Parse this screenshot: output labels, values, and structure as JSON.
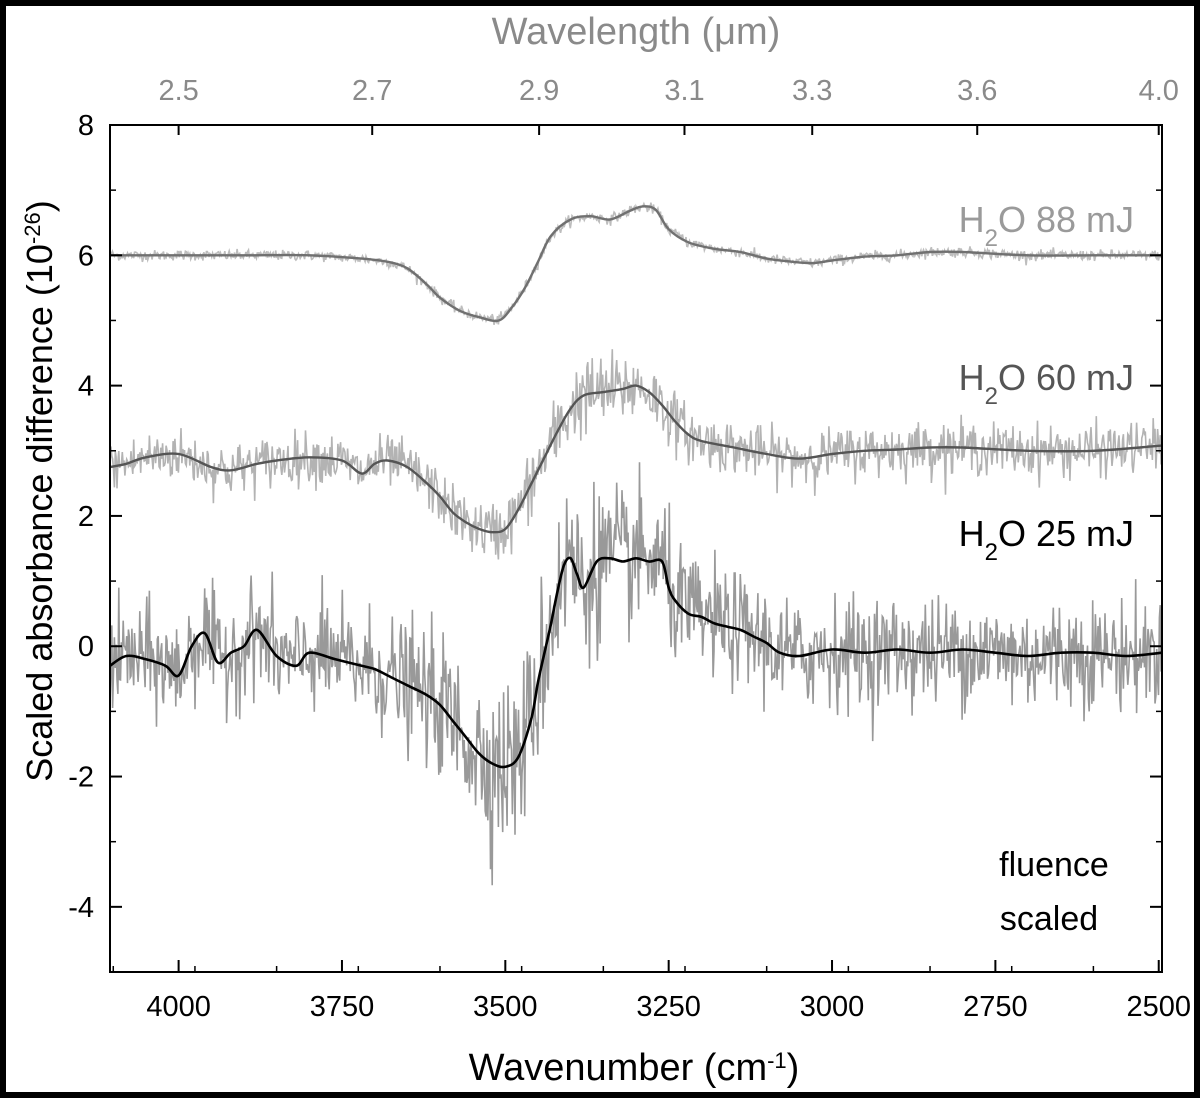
{
  "chart_data": {
    "type": "line",
    "title": "",
    "top_axis_label": "Wavelength (μm)",
    "top_ticks": [
      "2.5",
      "2.7",
      "2.9",
      "3.1",
      "3.3",
      "3.6",
      "4.0"
    ],
    "top_tick_values_um": [
      2.5,
      2.7,
      2.9,
      3.1,
      3.3,
      3.6,
      4.0
    ],
    "xlabel": "Wavenumber (cm⁻¹)",
    "xlabel_main": "Wavenumber (cm",
    "xlabel_sup": "-1",
    "xlabel_close": ")",
    "ylabel_main": "Scaled absorbance difference (10",
    "ylabel_sup": "-26",
    "ylabel_close": ")",
    "xlim": [
      4105,
      2495
    ],
    "ylim": [
      -5,
      8
    ],
    "x_reversed": true,
    "grid": false,
    "x_ticks": [
      4000,
      3750,
      3500,
      3250,
      3000,
      2750,
      2500
    ],
    "x_tick_labels": [
      "4000",
      "3750",
      "3500",
      "3250",
      "3000",
      "2750",
      "2500"
    ],
    "y_ticks": [
      -4,
      -2,
      0,
      2,
      4,
      6,
      8
    ],
    "y_tick_labels": [
      "-4",
      "-2",
      "0",
      "2",
      "4",
      "6",
      "8"
    ],
    "annotation_lines": [
      "fluence",
      "scaled"
    ],
    "series": [
      {
        "name": "H2O 88 mJ",
        "label_main": "H",
        "label_sub": "2",
        "label_rest": "O 88 mJ",
        "raw_color": "#bdbdbd",
        "smooth_color": "#707070",
        "label_color": "#9a9a9a",
        "noise_amplitude": 0.07,
        "x": [
          4105,
          4000,
          3900,
          3800,
          3720,
          3680,
          3650,
          3620,
          3600,
          3570,
          3540,
          3510,
          3490,
          3470,
          3450,
          3430,
          3400,
          3370,
          3340,
          3310,
          3290,
          3270,
          3250,
          3220,
          3180,
          3140,
          3100,
          3060,
          3030,
          3000,
          2950,
          2900,
          2850,
          2800,
          2700,
          2600,
          2495
        ],
        "y": [
          6.0,
          6.0,
          6.0,
          6.0,
          5.95,
          5.9,
          5.8,
          5.55,
          5.35,
          5.15,
          5.05,
          5.0,
          5.2,
          5.5,
          5.9,
          6.3,
          6.55,
          6.6,
          6.55,
          6.68,
          6.75,
          6.7,
          6.4,
          6.2,
          6.1,
          6.05,
          5.95,
          5.9,
          5.88,
          5.92,
          5.98,
          6.0,
          6.05,
          6.05,
          6.0,
          6.0,
          6.0
        ]
      },
      {
        "name": "H2O 60 mJ",
        "label_main": "H",
        "label_sub": "2",
        "label_rest": "O 60 mJ",
        "raw_color": "#b3b3b3",
        "smooth_color": "#555555",
        "label_color": "#555555",
        "noise_amplitude": 0.35,
        "x": [
          4105,
          4080,
          4050,
          4000,
          3950,
          3920,
          3880,
          3850,
          3800,
          3750,
          3720,
          3700,
          3680,
          3650,
          3620,
          3600,
          3580,
          3560,
          3540,
          3520,
          3500,
          3480,
          3460,
          3440,
          3420,
          3400,
          3380,
          3350,
          3320,
          3300,
          3280,
          3260,
          3240,
          3220,
          3200,
          3150,
          3100,
          3050,
          3000,
          2950,
          2900,
          2850,
          2800,
          2700,
          2600,
          2495
        ],
        "y": [
          2.75,
          2.8,
          2.9,
          2.95,
          2.75,
          2.7,
          2.8,
          2.85,
          2.9,
          2.85,
          2.65,
          2.8,
          2.85,
          2.75,
          2.5,
          2.3,
          2.05,
          1.9,
          1.8,
          1.75,
          1.8,
          2.1,
          2.5,
          2.9,
          3.3,
          3.65,
          3.85,
          3.9,
          3.95,
          4.0,
          3.9,
          3.7,
          3.45,
          3.25,
          3.15,
          3.05,
          2.95,
          2.88,
          2.95,
          3.0,
          3.02,
          3.05,
          3.05,
          3.0,
          3.0,
          3.08
        ]
      },
      {
        "name": "H2O 25 mJ",
        "label_main": "H",
        "label_sub": "2",
        "label_rest": "O 25 mJ",
        "raw_color": "#999999",
        "smooth_color": "#000000",
        "label_color": "#000000",
        "noise_amplitude": 0.75,
        "x": [
          4105,
          4080,
          4050,
          4020,
          4000,
          3980,
          3960,
          3940,
          3920,
          3900,
          3880,
          3850,
          3820,
          3800,
          3760,
          3720,
          3700,
          3680,
          3650,
          3620,
          3600,
          3580,
          3560,
          3540,
          3520,
          3500,
          3480,
          3460,
          3450,
          3440,
          3430,
          3420,
          3410,
          3400,
          3390,
          3380,
          3360,
          3340,
          3320,
          3300,
          3280,
          3260,
          3250,
          3240,
          3220,
          3200,
          3180,
          3160,
          3140,
          3120,
          3100,
          3080,
          3050,
          3000,
          2950,
          2900,
          2850,
          2800,
          2750,
          2700,
          2650,
          2600,
          2550,
          2495
        ],
        "y": [
          -0.3,
          -0.15,
          -0.2,
          -0.3,
          -0.45,
          0.0,
          0.2,
          -0.25,
          -0.1,
          0.0,
          0.25,
          -0.15,
          -0.3,
          -0.1,
          -0.2,
          -0.3,
          -0.35,
          -0.45,
          -0.6,
          -0.75,
          -0.9,
          -1.15,
          -1.4,
          -1.65,
          -1.8,
          -1.85,
          -1.7,
          -1.1,
          -0.55,
          -0.1,
          0.35,
          0.85,
          1.25,
          1.35,
          1.1,
          0.9,
          1.3,
          1.35,
          1.3,
          1.35,
          1.3,
          1.3,
          0.9,
          0.7,
          0.5,
          0.45,
          0.35,
          0.3,
          0.25,
          0.15,
          0.05,
          -0.1,
          -0.15,
          -0.05,
          -0.1,
          -0.05,
          -0.1,
          -0.05,
          -0.1,
          -0.15,
          -0.1,
          -0.1,
          -0.15,
          -0.1
        ]
      }
    ]
  }
}
